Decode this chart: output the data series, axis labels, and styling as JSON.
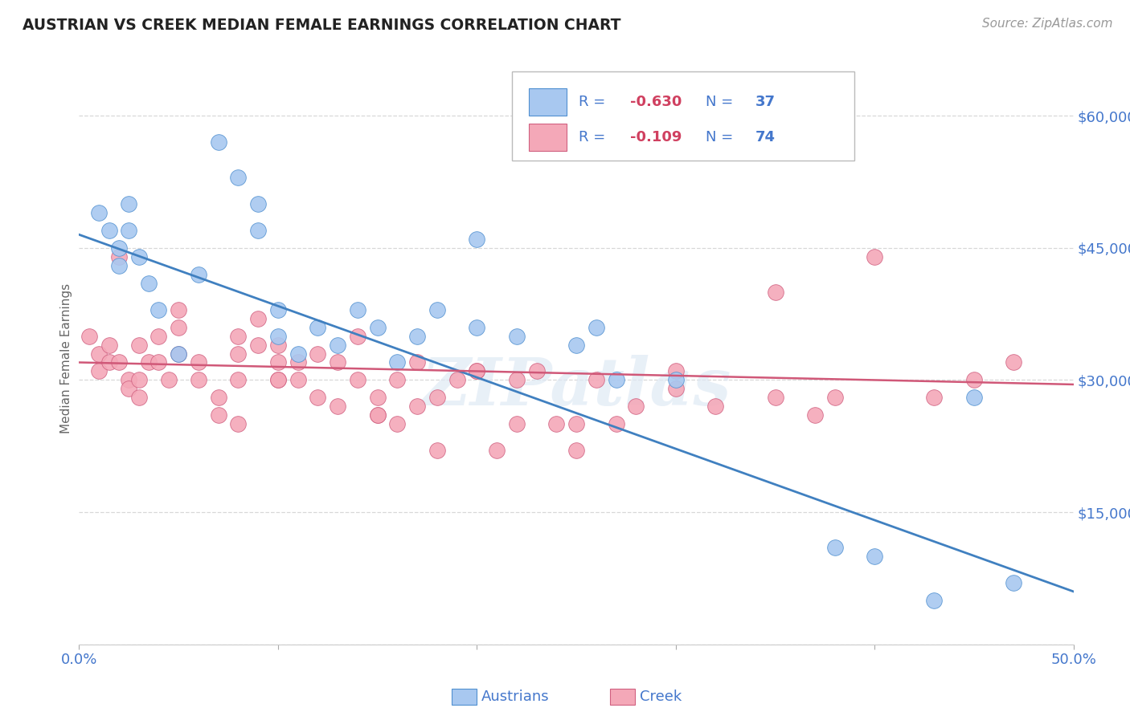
{
  "title": "AUSTRIAN VS CREEK MEDIAN FEMALE EARNINGS CORRELATION CHART",
  "source": "Source: ZipAtlas.com",
  "ylabel": "Median Female Earnings",
  "xlim": [
    0.0,
    0.5
  ],
  "ylim": [
    0,
    65000
  ],
  "yticks": [
    0,
    15000,
    30000,
    45000,
    60000
  ],
  "ytick_labels": [
    "",
    "$15,000",
    "$30,000",
    "$45,000",
    "$60,000"
  ],
  "xticks": [
    0.0,
    0.1,
    0.2,
    0.3,
    0.4,
    0.5
  ],
  "xtick_labels": [
    "0.0%",
    "",
    "",
    "",
    "",
    "50.0%"
  ],
  "background_color": "#ffffff",
  "grid_color": "#d8d8d8",
  "austrians_color": "#a8c8f0",
  "creek_color": "#f4a8b8",
  "austrians_edge_color": "#5090d0",
  "creek_edge_color": "#d06080",
  "austrians_line_color": "#4080c0",
  "creek_line_color": "#d05878",
  "R_austrians": -0.63,
  "N_austrians": 37,
  "R_creek": -0.109,
  "N_creek": 74,
  "watermark": "ZIPatlas",
  "au_line_x0": 0.0,
  "au_line_y0": 46500,
  "au_line_x1": 0.5,
  "au_line_y1": 6000,
  "cr_line_x0": 0.0,
  "cr_line_y0": 32000,
  "cr_line_x1": 0.5,
  "cr_line_y1": 29500,
  "austrians_x": [
    0.01,
    0.015,
    0.02,
    0.02,
    0.025,
    0.025,
    0.03,
    0.035,
    0.04,
    0.05,
    0.06,
    0.07,
    0.08,
    0.09,
    0.09,
    0.1,
    0.11,
    0.12,
    0.13,
    0.14,
    0.15,
    0.16,
    0.17,
    0.18,
    0.2,
    0.22,
    0.25,
    0.27,
    0.3,
    0.38,
    0.4,
    0.43,
    0.45,
    0.47,
    0.26,
    0.2,
    0.1
  ],
  "austrians_y": [
    49000,
    47000,
    45000,
    43000,
    50000,
    47000,
    44000,
    41000,
    38000,
    33000,
    42000,
    57000,
    53000,
    50000,
    47000,
    38000,
    33000,
    36000,
    34000,
    38000,
    36000,
    32000,
    35000,
    38000,
    46000,
    35000,
    34000,
    30000,
    30000,
    11000,
    10000,
    5000,
    28000,
    7000,
    36000,
    36000,
    35000
  ],
  "creek_x": [
    0.005,
    0.01,
    0.01,
    0.015,
    0.015,
    0.02,
    0.02,
    0.025,
    0.025,
    0.03,
    0.03,
    0.03,
    0.035,
    0.04,
    0.04,
    0.045,
    0.05,
    0.05,
    0.06,
    0.06,
    0.07,
    0.07,
    0.08,
    0.08,
    0.08,
    0.09,
    0.09,
    0.1,
    0.1,
    0.1,
    0.11,
    0.11,
    0.12,
    0.12,
    0.13,
    0.13,
    0.14,
    0.14,
    0.15,
    0.15,
    0.16,
    0.16,
    0.17,
    0.17,
    0.18,
    0.18,
    0.19,
    0.2,
    0.21,
    0.22,
    0.23,
    0.24,
    0.25,
    0.26,
    0.27,
    0.28,
    0.3,
    0.32,
    0.35,
    0.37,
    0.38,
    0.4,
    0.43,
    0.45,
    0.47,
    0.22,
    0.3,
    0.2,
    0.25,
    0.35,
    0.1,
    0.15,
    0.05,
    0.08
  ],
  "creek_y": [
    35000,
    33000,
    31000,
    34000,
    32000,
    44000,
    32000,
    30000,
    29000,
    34000,
    30000,
    28000,
    32000,
    35000,
    32000,
    30000,
    38000,
    36000,
    32000,
    30000,
    28000,
    26000,
    35000,
    33000,
    30000,
    37000,
    34000,
    34000,
    32000,
    30000,
    32000,
    30000,
    33000,
    28000,
    32000,
    27000,
    35000,
    30000,
    28000,
    26000,
    30000,
    25000,
    32000,
    27000,
    28000,
    22000,
    30000,
    31000,
    22000,
    30000,
    31000,
    25000,
    22000,
    30000,
    25000,
    27000,
    31000,
    27000,
    40000,
    26000,
    28000,
    44000,
    28000,
    30000,
    32000,
    25000,
    29000,
    31000,
    25000,
    28000,
    30000,
    26000,
    33000,
    25000
  ]
}
